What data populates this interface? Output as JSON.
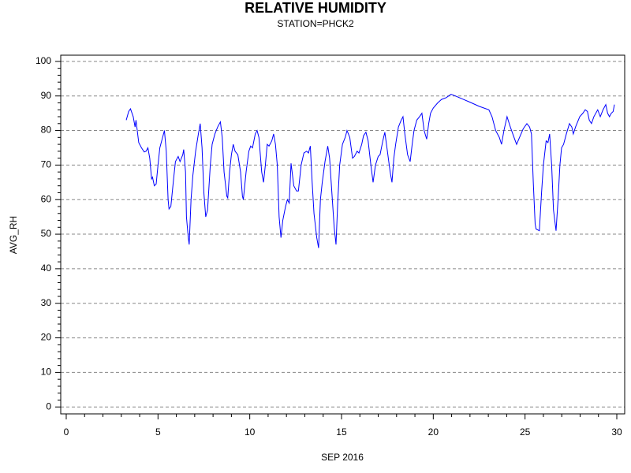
{
  "chart_data": {
    "type": "line",
    "title": "RELATIVE HUMIDITY",
    "subtitle": "STATION=PHCK2",
    "x_label": "SEP 2016",
    "y_label": "AVG_RH",
    "xlim": [
      -0.3,
      30.43
    ],
    "ylim": [
      -2,
      101.8
    ],
    "xticks": [
      0,
      5,
      10,
      15,
      20,
      25,
      30
    ],
    "yticks": [
      0,
      10,
      20,
      30,
      40,
      50,
      60,
      70,
      80,
      90,
      100
    ],
    "xticks_minor": [
      1,
      2,
      3,
      4,
      6,
      7,
      8,
      9,
      11,
      12,
      13,
      14,
      16,
      17,
      18,
      19,
      21,
      22,
      23,
      24,
      26,
      27,
      28,
      29
    ],
    "yticks_minor": [
      2,
      4,
      6,
      8,
      12,
      14,
      16,
      18,
      22,
      24,
      26,
      28,
      32,
      34,
      36,
      38,
      42,
      44,
      46,
      48,
      52,
      54,
      56,
      58,
      62,
      64,
      66,
      68,
      72,
      74,
      76,
      78,
      82,
      84,
      86,
      88,
      92,
      94,
      96,
      98
    ],
    "grid": true,
    "series": [
      {
        "name": "AVG_RH",
        "color": "#0000ff",
        "x": [
          3.27,
          3.4,
          3.5,
          3.65,
          3.75,
          3.8,
          3.95,
          4.1,
          4.25,
          4.35,
          4.45,
          4.55,
          4.65,
          4.7,
          4.8,
          4.9,
          5.0,
          5.1,
          5.25,
          5.35,
          5.45,
          5.55,
          5.6,
          5.7,
          5.85,
          5.95,
          6.1,
          6.2,
          6.35,
          6.4,
          6.5,
          6.55,
          6.65,
          6.7,
          6.8,
          6.9,
          7.05,
          7.2,
          7.3,
          7.4,
          7.5,
          7.6,
          7.7,
          7.85,
          7.95,
          8.1,
          8.25,
          8.4,
          8.5,
          8.6,
          8.75,
          8.8,
          8.9,
          9.0,
          9.1,
          9.2,
          9.35,
          9.5,
          9.6,
          9.65,
          9.8,
          9.95,
          10.05,
          10.15,
          10.3,
          10.4,
          10.5,
          10.65,
          10.75,
          10.85,
          10.95,
          11.05,
          11.2,
          11.3,
          11.4,
          11.5,
          11.6,
          11.7,
          11.8,
          11.95,
          12.05,
          12.15,
          12.25,
          12.4,
          12.55,
          12.65,
          12.8,
          12.95,
          13.1,
          13.2,
          13.3,
          13.4,
          13.5,
          13.65,
          13.75,
          13.85,
          13.95,
          14.1,
          14.25,
          14.35,
          14.5,
          14.6,
          14.7,
          14.8,
          14.9,
          15.05,
          15.2,
          15.3,
          15.45,
          15.6,
          15.7,
          15.85,
          15.95,
          16.1,
          16.2,
          16.33,
          16.45,
          16.6,
          16.72,
          16.85,
          17.0,
          17.1,
          17.25,
          17.36,
          17.5,
          17.65,
          17.75,
          17.85,
          17.95,
          18.1,
          18.25,
          18.35,
          18.45,
          18.6,
          18.74,
          18.85,
          18.95,
          19.1,
          19.25,
          19.38,
          19.5,
          19.64,
          19.75,
          19.85,
          20.0,
          20.24,
          20.45,
          20.7,
          20.97,
          21.2,
          22.0,
          22.5,
          23.03,
          23.2,
          23.4,
          23.6,
          23.72,
          23.85,
          24.02,
          24.2,
          24.4,
          24.54,
          24.7,
          24.9,
          25.1,
          25.25,
          25.35,
          25.45,
          25.55,
          25.6,
          25.78,
          25.9,
          26.0,
          26.15,
          26.25,
          26.34,
          26.45,
          26.55,
          26.69,
          26.8,
          26.9,
          26.99,
          27.1,
          27.25,
          27.42,
          27.55,
          27.63,
          27.75,
          27.98,
          28.15,
          28.28,
          28.4,
          28.5,
          28.62,
          28.75,
          28.96,
          29.1,
          29.25,
          29.4,
          29.5,
          29.6,
          29.7,
          29.8,
          29.87
        ],
        "values": [
          83,
          85.5,
          86.3,
          84,
          81,
          83,
          76.5,
          75,
          73.8,
          74,
          75,
          72,
          66,
          66.5,
          64,
          64.5,
          70,
          75,
          78,
          80,
          74,
          60,
          57.3,
          58,
          66,
          71,
          72.5,
          71,
          73,
          74.5,
          68,
          55,
          49,
          47,
          60,
          67,
          74,
          79,
          82,
          75,
          62,
          55,
          57,
          70,
          76,
          79,
          81,
          82.5,
          78,
          68,
          61,
          60.5,
          68,
          73,
          76,
          74,
          73,
          68,
          61,
          60,
          68,
          74,
          75.5,
          75,
          79,
          80,
          78,
          68,
          65,
          70,
          76,
          75.5,
          77,
          79,
          76,
          70,
          55,
          49,
          54,
          58,
          60,
          59,
          70.5,
          64,
          62.5,
          62.5,
          70,
          73.5,
          74,
          73.5,
          75.5,
          65,
          56,
          49,
          46,
          60,
          65,
          71,
          75.5,
          72,
          60,
          52,
          47,
          60,
          70,
          76,
          78,
          80,
          78,
          72,
          72.5,
          74,
          73.5,
          76,
          78.5,
          79.5,
          77,
          70,
          65,
          70,
          72.5,
          73,
          77,
          79.5,
          74,
          68,
          65,
          72,
          76,
          81,
          83,
          84,
          79,
          73,
          71,
          76,
          80,
          83,
          84,
          85,
          80,
          77.5,
          82,
          85,
          86.5,
          88,
          89,
          89.5,
          90.5,
          90,
          88.2,
          87,
          86,
          84,
          80,
          78,
          76,
          80,
          84,
          81,
          78,
          76,
          78,
          80.5,
          82,
          81,
          79,
          65,
          53,
          51.5,
          51,
          62,
          70,
          77,
          76.5,
          79,
          70,
          57,
          51,
          60,
          70,
          75,
          76,
          79,
          82,
          81,
          79,
          81,
          84,
          85,
          86,
          85.5,
          83,
          82,
          84,
          86,
          84,
          86,
          87.5,
          85,
          84,
          85,
          85.5,
          87.5
        ]
      }
    ]
  }
}
